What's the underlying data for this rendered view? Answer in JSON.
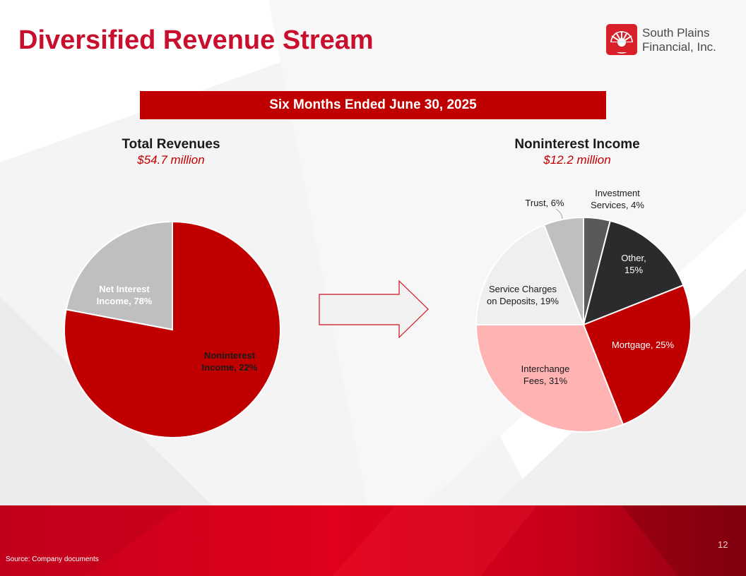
{
  "slide": {
    "title": "Diversified Revenue Stream",
    "banner": "Six Months Ended June 30, 2025",
    "source": "Source: Company documents",
    "page_number": "12"
  },
  "logo": {
    "line1": "South Plains",
    "line2": "Financial, Inc.",
    "icon": "sun-rays-logo-icon"
  },
  "colors": {
    "brand_red": "#c8102e",
    "banner_red": "#c00000"
  },
  "chart_data": [
    {
      "type": "pie",
      "title": "Total Revenues",
      "subtitle": "$54.7 million",
      "slices": [
        {
          "label": "Net Interest Income, 78%",
          "value": 78,
          "color": "#c00000",
          "text_color": "#ffffff"
        },
        {
          "label": "Noninterest Income, 22%",
          "value": 22,
          "color": "#bfbfbf",
          "text_color": "#1a1a1a"
        }
      ]
    },
    {
      "type": "pie",
      "title": "Noninterest Income",
      "subtitle": "$12.2 million",
      "slices": [
        {
          "label": "Investment Services, 4%",
          "value": 4,
          "color": "#595959",
          "text_color": "#1a1a1a"
        },
        {
          "label": "Other, 15%",
          "value": 15,
          "color": "#2b2b2d",
          "text_color": "#ffffff"
        },
        {
          "label": "Mortgage, 25%",
          "value": 25,
          "color": "#c00000",
          "text_color": "#ffffff"
        },
        {
          "label": "Interchange Fees, 31%",
          "value": 31,
          "color": "#ffb3b3",
          "text_color": "#1a1a1a"
        },
        {
          "label": "Service Charges on Deposits, 19%",
          "value": 19,
          "color": "#efefef",
          "text_color": "#1a1a1a"
        },
        {
          "label": "Trust, 6%",
          "value": 6,
          "color": "#bfbfbf",
          "text_color": "#1a1a1a"
        }
      ]
    }
  ]
}
